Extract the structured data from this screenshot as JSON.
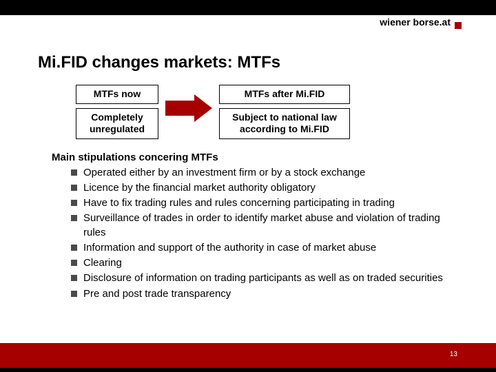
{
  "logo": {
    "text": "wiener borse.at"
  },
  "title": "Mi.FID changes markets: MTFs",
  "comparison": {
    "left": {
      "header": "MTFs now",
      "body": "Completely unregulated"
    },
    "right": {
      "header": "MTFs after Mi.FID",
      "body": "Subject to national law according to Mi.FID"
    }
  },
  "stipulations": {
    "heading": "Main stipulations concering MTFs",
    "items": [
      "Operated either by an investment firm or by a stock exchange",
      "Licence by the financial market authority obligatory",
      "Have to fix trading rules and rules concerning participating in trading",
      "Surveillance of trades in order to identify market abuse and violation of trading rules",
      "Information and support of the authority in case of market abuse",
      "Clearing",
      "Disclosure of information on trading participants as well as on traded securities",
      "Pre and post trade transparency"
    ]
  },
  "page_number": "13",
  "colors": {
    "accent": "#a60000",
    "bullet": "#4a4a4a",
    "black": "#000000",
    "white": "#ffffff"
  }
}
